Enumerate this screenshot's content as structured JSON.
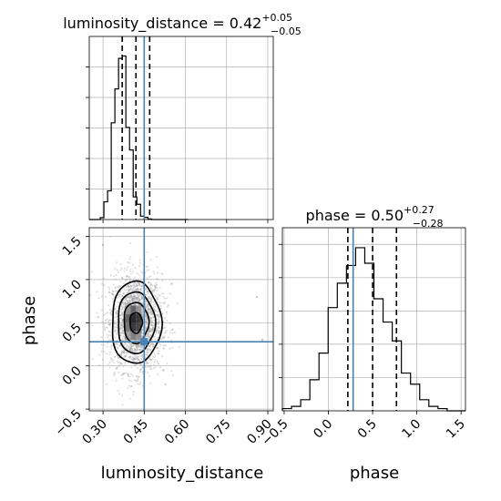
{
  "chart_data": [
    {
      "panel": "luminosity_distance-marginal",
      "type": "histogram",
      "title": {
        "param": "luminosity_distance",
        "value": "0.42",
        "plus": "+0.05",
        "minus": "−0.05"
      },
      "xlim": [
        0.25,
        0.92
      ],
      "x_ticks": [
        0.3,
        0.45,
        0.6,
        0.75,
        0.9
      ],
      "bin_edges": [
        0.25,
        0.2633,
        0.2767,
        0.29,
        0.3033,
        0.3167,
        0.33,
        0.3433,
        0.3567,
        0.37,
        0.3833,
        0.3967,
        0.41,
        0.4233,
        0.4367,
        0.45,
        0.4633,
        0.4767,
        0.49,
        0.5033,
        0.5167,
        0.53,
        0.5433,
        0.5567,
        0.57,
        0.5833,
        0.5967,
        0.61
      ],
      "counts": [
        0,
        0,
        0,
        0.6,
        5.8,
        9.4,
        31.7,
        42.8,
        52.8,
        53.6,
        30.2,
        22.8,
        7.4,
        5.0,
        1.1,
        0.7,
        0.2,
        0,
        0,
        0,
        0,
        0,
        0,
        0,
        0,
        0,
        0
      ],
      "ylim": [
        0,
        60
      ],
      "quantiles": [
        0.37,
        0.42,
        0.47
      ],
      "truth": 0.45
    },
    {
      "panel": "phase-marginal",
      "type": "histogram",
      "title": {
        "param": "phase",
        "value": "0.50",
        "plus": "+0.27",
        "minus": "−0.28"
      },
      "xlim": [
        -0.52,
        1.55
      ],
      "x_ticks": [
        -0.5,
        0.0,
        0.5,
        1.0,
        1.5
      ],
      "x_tick_labels": [
        "−0.5",
        "0.0",
        "0.5",
        "1.0",
        "1.5"
      ],
      "xlabel": "phase",
      "bin_edges": [
        -0.52,
        -0.4165,
        -0.313,
        -0.2095,
        -0.106,
        -0.0025,
        0.101,
        0.2045,
        0.308,
        0.4115,
        0.515,
        0.6185,
        0.722,
        0.8255,
        0.929,
        1.0325,
        1.136,
        1.2395,
        1.343,
        1.4465,
        1.55
      ],
      "counts": [
        2,
        4,
        10,
        28,
        52,
        93,
        115,
        131,
        147,
        133,
        101,
        80,
        63,
        34,
        24,
        10,
        4,
        2,
        0,
        0
      ],
      "ylim": [
        0,
        165
      ],
      "quantiles": [
        0.22,
        0.5,
        0.77
      ],
      "truth": 0.28
    },
    {
      "panel": "joint-luminosity_distance-vs-phase",
      "type": "scatter-contour",
      "xlabel": "luminosity_distance",
      "ylabel": "phase",
      "xlim": [
        0.25,
        0.92
      ],
      "ylim": [
        -0.52,
        1.6
      ],
      "x_ticks": [
        0.3,
        0.45,
        0.6,
        0.75,
        0.9
      ],
      "x_tick_labels": [
        "0.30",
        "0.45",
        "0.60",
        "0.75",
        "0.90"
      ],
      "y_ticks": [
        -0.5,
        0.0,
        0.5,
        1.0,
        1.5
      ],
      "y_tick_labels": [
        "−0.5",
        "0.0",
        "0.5",
        "1.0",
        "1.5"
      ],
      "center": [
        0.42,
        0.5
      ],
      "spread": [
        0.05,
        0.28
      ],
      "contour_sigmas": [
        0.5,
        1.0,
        1.5,
        2.0
      ],
      "truth": [
        0.45,
        0.28
      ],
      "colors": {
        "truth": "#4682b4",
        "grid": "#b0b0b0",
        "points": "#9a9a9a",
        "contour": "#000000"
      }
    }
  ]
}
